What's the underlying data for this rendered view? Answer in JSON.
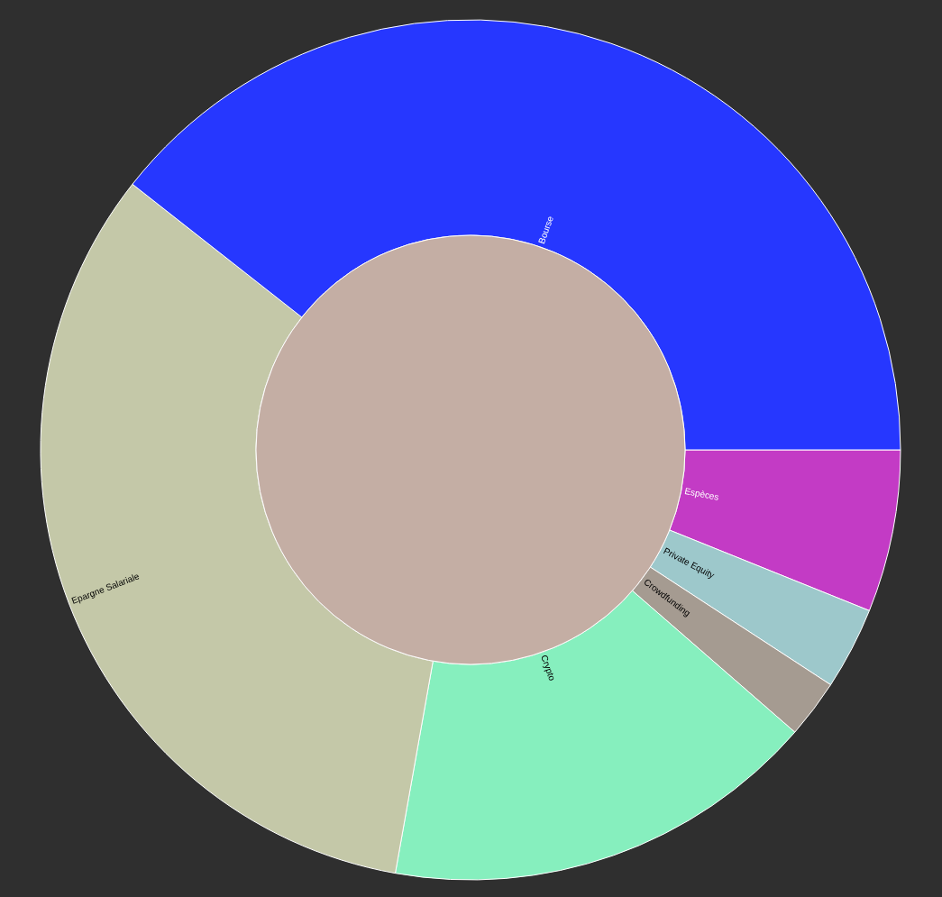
{
  "chart_data": {
    "type": "donut",
    "categories": [
      "Espèces",
      "Private Equity",
      "Crowdfunding",
      "Crypto",
      "Epargne Salariale",
      "Bourse"
    ],
    "values": [
      6.1,
      3.1,
      2.2,
      16.4,
      32.8,
      39.4
    ],
    "colors": [
      "#c33bc5",
      "#9dc8cb",
      "#a59b91",
      "#86efbe",
      "#c4c8a8",
      "#2637ff"
    ]
  }
}
